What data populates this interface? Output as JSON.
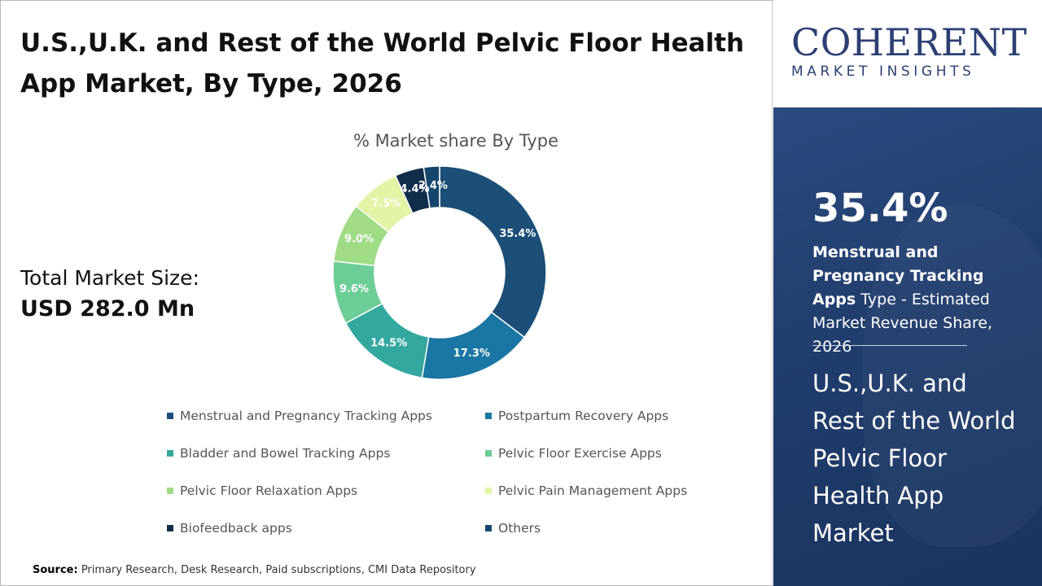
{
  "header": {
    "title": "U.S.,U.K. and Rest of the World Pelvic Floor Health App Market, By Type, 2026"
  },
  "logo": {
    "name": "COHERENT",
    "tagline": "MARKET INSIGHTS"
  },
  "total": {
    "label": "Total Market Size:",
    "value": "USD 282.0 Mn"
  },
  "side_panel": {
    "percent": "35.4%",
    "highlight": "Menstrual and Pregnancy Tracking Apps",
    "desc_rest": " Type - Estimated Market Revenue Share, 2026",
    "market_name": "U.S.,U.K. and Rest of the World Pelvic Floor Health App Market"
  },
  "source": {
    "label": "Source:",
    "text": " Primary Research, Desk Research, Paid subscriptions, CMI Data Repository"
  },
  "colors": {
    "panel_bg": "#213d6d",
    "logo_blue": "#2b3f73"
  },
  "chart_data": {
    "type": "pie",
    "title": "% Market share By Type",
    "categories": [
      "Menstrual and Pregnancy Tracking Apps",
      "Postpartum Recovery Apps",
      "Bladder and Bowel Tracking Apps",
      "Pelvic Floor Exercise Apps",
      "Pelvic Floor Relaxation Apps",
      "Pelvic Pain Management Apps",
      "Biofeedback apps",
      "Others"
    ],
    "values": [
      35.4,
      17.3,
      14.5,
      9.6,
      9.0,
      7.5,
      4.4,
      2.4
    ],
    "labels": [
      "35.4%",
      "17.3%",
      "14.5%",
      "9.6%",
      "9.0%",
      "7.5%",
      "4.4%",
      "2.4%"
    ],
    "colors": [
      "#1b4f78",
      "#1a76a3",
      "#33a89f",
      "#6ccd96",
      "#9fdc85",
      "#e3f4a6",
      "#102d4a",
      "#15466e"
    ],
    "donut": true,
    "legend_position": "bottom"
  }
}
